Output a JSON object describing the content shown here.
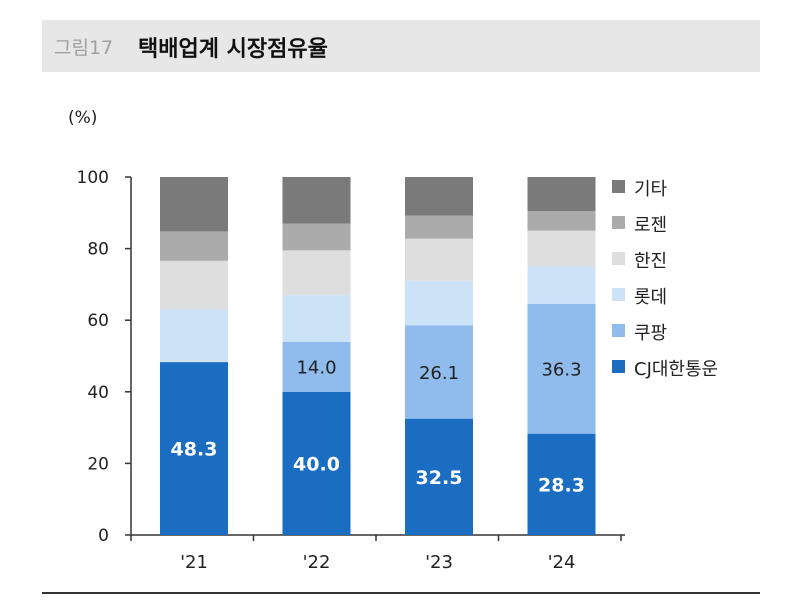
{
  "header": {
    "figure_label": "그림17",
    "title": "택배업계 시장점유율"
  },
  "chart_data": {
    "type": "bar",
    "stacked": true,
    "unit": "(%)",
    "categories": [
      "'21",
      "'22",
      "'23",
      "'24"
    ],
    "ylim": [
      0,
      100
    ],
    "yticks": [
      0,
      20,
      40,
      60,
      80,
      100
    ],
    "grid": false,
    "legend_position": "right",
    "series": [
      {
        "name": "CJ대한통운",
        "color": "#1b6dc1",
        "values": [
          48.3,
          40.0,
          32.5,
          28.3
        ],
        "labels": [
          "48.3",
          "40.0",
          "32.5",
          "28.3"
        ],
        "label_color": "#ffffff"
      },
      {
        "name": "쿠팡",
        "color": "#8fbcec",
        "values": [
          0,
          14.0,
          26.1,
          36.3
        ],
        "labels": [
          "",
          "14.0",
          "26.1",
          "36.3"
        ],
        "label_color": "#222222"
      },
      {
        "name": "롯데",
        "color": "#cce2f7",
        "values": [
          14.7,
          13.0,
          12.4,
          10.4
        ],
        "labels": [
          "",
          "",
          "",
          ""
        ]
      },
      {
        "name": "한진",
        "color": "#dedede",
        "values": [
          13.6,
          12.5,
          11.8,
          10.0
        ],
        "labels": [
          "",
          "",
          "",
          ""
        ]
      },
      {
        "name": "로젠",
        "color": "#ababab",
        "values": [
          8.2,
          7.5,
          6.4,
          5.5
        ],
        "labels": [
          "",
          "",
          "",
          ""
        ]
      },
      {
        "name": "기타",
        "color": "#7a7a7a",
        "values": [
          15.2,
          13.0,
          10.8,
          9.5
        ],
        "labels": [
          "",
          "",
          "",
          ""
        ]
      }
    ]
  }
}
